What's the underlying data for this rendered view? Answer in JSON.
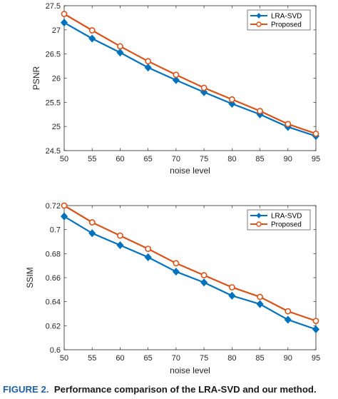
{
  "chart_data": [
    {
      "type": "line",
      "title": "",
      "xlabel": "noise level",
      "ylabel": "PSNR",
      "x": [
        50,
        55,
        60,
        65,
        70,
        75,
        80,
        85,
        90,
        95
      ],
      "xlim": [
        50,
        95
      ],
      "ylim": [
        24.5,
        27.5
      ],
      "x_ticks": [
        "50",
        "55",
        "60",
        "65",
        "70",
        "75",
        "80",
        "85",
        "90",
        "95"
      ],
      "y_ticks": [
        "24.5",
        "25",
        "25.5",
        "26",
        "26.5",
        "27",
        "27.5"
      ],
      "grid": false,
      "legend_position": "top-right",
      "series": [
        {
          "name": "LRA-SVD",
          "marker": "diamond",
          "color": "#0072BD",
          "values": [
            27.15,
            26.82,
            26.53,
            26.22,
            25.96,
            25.71,
            25.47,
            25.25,
            24.99,
            24.8
          ]
        },
        {
          "name": "Proposed",
          "marker": "circle",
          "color": "#D95319",
          "values": [
            27.33,
            26.99,
            26.66,
            26.35,
            26.07,
            25.8,
            25.56,
            25.32,
            25.05,
            24.85
          ]
        }
      ]
    },
    {
      "type": "line",
      "title": "",
      "xlabel": "noise level",
      "ylabel": "SSIM",
      "x": [
        50,
        55,
        60,
        65,
        70,
        75,
        80,
        85,
        90,
        95
      ],
      "xlim": [
        50,
        95
      ],
      "ylim": [
        0.6,
        0.72
      ],
      "x_ticks": [
        "50",
        "55",
        "60",
        "65",
        "70",
        "75",
        "80",
        "85",
        "90",
        "95"
      ],
      "y_ticks": [
        "0.6",
        "0.62",
        "0.64",
        "0.66",
        "0.68",
        "0.7",
        "0.72"
      ],
      "grid": false,
      "legend_position": "top-right",
      "series": [
        {
          "name": "LRA-SVD",
          "marker": "diamond",
          "color": "#0072BD",
          "values": [
            0.711,
            0.697,
            0.687,
            0.677,
            0.665,
            0.656,
            0.645,
            0.638,
            0.625,
            0.617
          ]
        },
        {
          "name": "Proposed",
          "marker": "circle",
          "color": "#D95319",
          "values": [
            0.72,
            0.706,
            0.695,
            0.684,
            0.672,
            0.662,
            0.652,
            0.644,
            0.632,
            0.624
          ]
        }
      ]
    }
  ],
  "caption": {
    "label": "FIGURE 2.",
    "text": "Performance comparison of the LRA-SVD and our method."
  }
}
